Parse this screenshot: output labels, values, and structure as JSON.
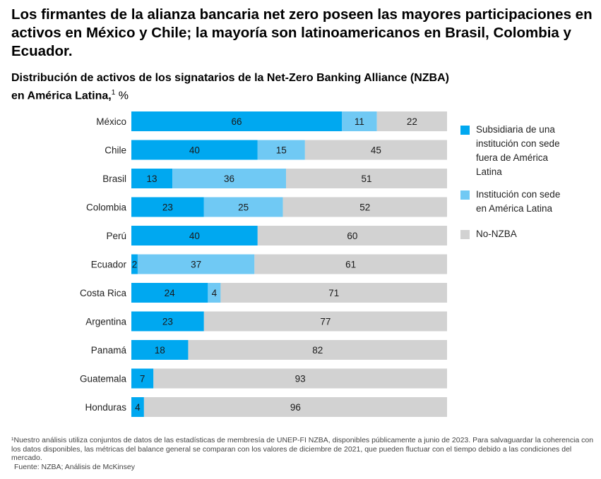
{
  "title": "Los firmantes de la alianza bancaria net zero poseen las mayores participaciones en activos en México y Chile; la mayoría son latinoamericanos en Brasil, Colombia y Ecuador.",
  "subtitle_line1": "Distribución de activos de los signatarios de la Net-Zero Banking Alliance (NZBA)",
  "subtitle_line2": "en América Latina,",
  "subtitle_sup": "1",
  "subtitle_unit": "%",
  "legend": [
    "Subsidiaria de una institución con sede fuera de América Latina",
    "Institución con sede en América Latina",
    "No-NZBA"
  ],
  "colors": [
    "#00a8f0",
    "#70c9f4",
    "#d2d2d2"
  ],
  "footnote": "¹Nuestro análisis utiliza conjuntos de datos de las estadísticas de membresía de UNEP-FI NZBA, disponibles públicamente a junio de 2023. Para salvaguardar la coherencia con los datos disponibles, las métricas del balance general se comparan con los valores de diciembre de 2021, que pueden fluctuar con el tiempo debido a las condiciones del mercado.",
  "source": "Fuente: NZBA; Análisis de McKinsey",
  "chart_data": {
    "type": "bar",
    "orientation": "horizontal-stacked",
    "categories": [
      "México",
      "Chile",
      "Brasil",
      "Colombia",
      "Perú",
      "Ecuador",
      "Costa Rica",
      "Argentina",
      "Panamá",
      "Guatemala",
      "Honduras"
    ],
    "series": [
      {
        "name": "Subsidiaria de una institución con sede fuera de América Latina",
        "values": [
          66,
          40,
          13,
          23,
          40,
          2,
          24,
          23,
          18,
          7,
          4
        ]
      },
      {
        "name": "Institución con sede en América Latina",
        "values": [
          11,
          15,
          36,
          25,
          0,
          37,
          4,
          0,
          0,
          0,
          0
        ]
      },
      {
        "name": "No-NZBA",
        "values": [
          22,
          45,
          51,
          52,
          60,
          61,
          71,
          77,
          82,
          93,
          96
        ]
      }
    ],
    "unit": "%",
    "legend_position": "right"
  }
}
